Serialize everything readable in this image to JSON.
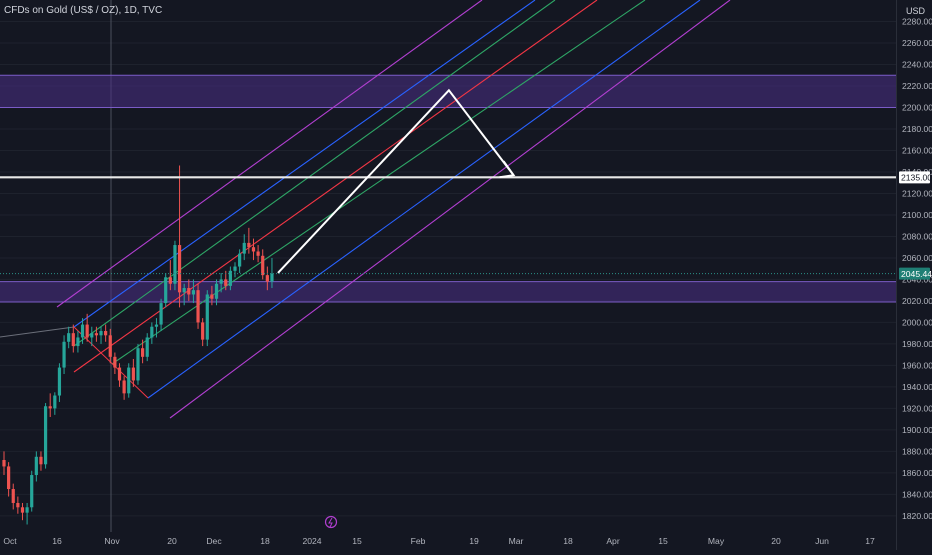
{
  "header": {
    "title": "CFDs on Gold (US$ / OZ), 1D, TVC",
    "currency": "USD"
  },
  "price_labels": {
    "level": "2135.00",
    "last": "2045.44"
  },
  "colors": {
    "background": "#141722",
    "bull": "#26a69a",
    "bear": "#ef5350",
    "zone": "#4a2f86",
    "zone_border": "#7b5cc7",
    "fib_purple": "#b13fd0",
    "fib_blue": "#2962ff",
    "fib_green": "#2ea666",
    "fib_red": "#f23645",
    "projection": "#ffffff",
    "last_price_badge": "#1f7f75"
  },
  "chart_data": {
    "type": "candlestick",
    "title": "CFDs on Gold (US$ / OZ), 1D, TVC",
    "ylabel": "USD",
    "ylim": [
      1805,
      2300
    ],
    "y_ticks": [
      "2280.00",
      "2260.00",
      "2240.00",
      "2220.00",
      "2200.00",
      "2180.00",
      "2160.00",
      "2140.00",
      "2120.00",
      "2100.00",
      "2080.00",
      "2060.00",
      "2040.00",
      "2020.00",
      "2000.00",
      "1980.00",
      "1960.00",
      "1940.00",
      "1920.00",
      "1900.00",
      "1880.00",
      "1860.00",
      "1840.00",
      "1820.00"
    ],
    "x_ticks": [
      "Oct",
      "16",
      "Nov",
      "20",
      "Dec",
      "18",
      "2024",
      "15",
      "Feb",
      "19",
      "Mar",
      "18",
      "Apr",
      "15",
      "May",
      "20",
      "Jun",
      "17"
    ],
    "candles": [
      {
        "o": 1872,
        "h": 1880,
        "l": 1858,
        "c": 1866
      },
      {
        "o": 1866,
        "h": 1870,
        "l": 1838,
        "c": 1845
      },
      {
        "o": 1845,
        "h": 1850,
        "l": 1826,
        "c": 1832
      },
      {
        "o": 1832,
        "h": 1838,
        "l": 1822,
        "c": 1828
      },
      {
        "o": 1828,
        "h": 1832,
        "l": 1816,
        "c": 1823
      },
      {
        "o": 1823,
        "h": 1832,
        "l": 1812,
        "c": 1828
      },
      {
        "o": 1828,
        "h": 1862,
        "l": 1824,
        "c": 1858
      },
      {
        "o": 1858,
        "h": 1880,
        "l": 1852,
        "c": 1875
      },
      {
        "o": 1875,
        "h": 1880,
        "l": 1862,
        "c": 1868
      },
      {
        "o": 1868,
        "h": 1925,
        "l": 1864,
        "c": 1922
      },
      {
        "o": 1922,
        "h": 1934,
        "l": 1912,
        "c": 1920
      },
      {
        "o": 1920,
        "h": 1935,
        "l": 1914,
        "c": 1932
      },
      {
        "o": 1932,
        "h": 1962,
        "l": 1926,
        "c": 1958
      },
      {
        "o": 1958,
        "h": 1988,
        "l": 1952,
        "c": 1982
      },
      {
        "o": 1982,
        "h": 1996,
        "l": 1976,
        "c": 1990
      },
      {
        "o": 1990,
        "h": 1998,
        "l": 1972,
        "c": 1978
      },
      {
        "o": 1978,
        "h": 1992,
        "l": 1972,
        "c": 1986
      },
      {
        "o": 1986,
        "h": 2004,
        "l": 1980,
        "c": 1998
      },
      {
        "o": 1998,
        "h": 2008,
        "l": 1982,
        "c": 1986
      },
      {
        "o": 1986,
        "h": 1996,
        "l": 1978,
        "c": 1990
      },
      {
        "o": 1990,
        "h": 1996,
        "l": 1982,
        "c": 1988
      },
      {
        "o": 1988,
        "h": 1996,
        "l": 1980,
        "c": 1992
      },
      {
        "o": 1992,
        "h": 1998,
        "l": 1982,
        "c": 1988
      },
      {
        "o": 1988,
        "h": 1994,
        "l": 1962,
        "c": 1968
      },
      {
        "o": 1968,
        "h": 1972,
        "l": 1952,
        "c": 1958
      },
      {
        "o": 1958,
        "h": 1962,
        "l": 1940,
        "c": 1946
      },
      {
        "o": 1946,
        "h": 1950,
        "l": 1928,
        "c": 1934
      },
      {
        "o": 1934,
        "h": 1962,
        "l": 1930,
        "c": 1958
      },
      {
        "o": 1958,
        "h": 1966,
        "l": 1940,
        "c": 1946
      },
      {
        "o": 1946,
        "h": 1980,
        "l": 1942,
        "c": 1976
      },
      {
        "o": 1976,
        "h": 1984,
        "l": 1962,
        "c": 1968
      },
      {
        "o": 1968,
        "h": 1990,
        "l": 1964,
        "c": 1986
      },
      {
        "o": 1986,
        "h": 2000,
        "l": 1980,
        "c": 1996
      },
      {
        "o": 1996,
        "h": 2004,
        "l": 1986,
        "c": 1998
      },
      {
        "o": 1998,
        "h": 2022,
        "l": 1992,
        "c": 2018
      },
      {
        "o": 2018,
        "h": 2046,
        "l": 2014,
        "c": 2042
      },
      {
        "o": 2042,
        "h": 2058,
        "l": 2030,
        "c": 2036
      },
      {
        "o": 2036,
        "h": 2076,
        "l": 2030,
        "c": 2072
      },
      {
        "o": 2072,
        "h": 2146,
        "l": 2014,
        "c": 2028
      },
      {
        "o": 2028,
        "h": 2036,
        "l": 2016,
        "c": 2032
      },
      {
        "o": 2032,
        "h": 2040,
        "l": 2020,
        "c": 2026
      },
      {
        "o": 2026,
        "h": 2040,
        "l": 2018,
        "c": 2030
      },
      {
        "o": 2030,
        "h": 2036,
        "l": 1994,
        "c": 2000
      },
      {
        "o": 2000,
        "h": 2004,
        "l": 1978,
        "c": 1984
      },
      {
        "o": 1984,
        "h": 2030,
        "l": 1978,
        "c": 2026
      },
      {
        "o": 2026,
        "h": 2034,
        "l": 2016,
        "c": 2022
      },
      {
        "o": 2022,
        "h": 2040,
        "l": 2016,
        "c": 2036
      },
      {
        "o": 2036,
        "h": 2046,
        "l": 2028,
        "c": 2040
      },
      {
        "o": 2040,
        "h": 2048,
        "l": 2030,
        "c": 2034
      },
      {
        "o": 2034,
        "h": 2052,
        "l": 2030,
        "c": 2048
      },
      {
        "o": 2048,
        "h": 2056,
        "l": 2042,
        "c": 2052
      },
      {
        "o": 2052,
        "h": 2068,
        "l": 2046,
        "c": 2064
      },
      {
        "o": 2064,
        "h": 2082,
        "l": 2058,
        "c": 2074
      },
      {
        "o": 2074,
        "h": 2088,
        "l": 2064,
        "c": 2070
      },
      {
        "o": 2070,
        "h": 2078,
        "l": 2058,
        "c": 2066
      },
      {
        "o": 2066,
        "h": 2072,
        "l": 2056,
        "c": 2062
      },
      {
        "o": 2062,
        "h": 2068,
        "l": 2040,
        "c": 2044
      },
      {
        "o": 2044,
        "h": 2052,
        "l": 2030,
        "c": 2038
      },
      {
        "o": 2038,
        "h": 2060,
        "l": 2032,
        "c": 2045.44
      }
    ],
    "horizontal_level": 2135,
    "zones": [
      {
        "top": 2230,
        "bottom": 2200
      },
      {
        "top": 2038,
        "bottom": 2019
      }
    ],
    "projection_path": [
      {
        "x_index": 58,
        "y": 2046
      },
      {
        "x_index": 95,
        "y": 2216
      },
      {
        "x_index": 109,
        "y": 2137
      }
    ]
  }
}
